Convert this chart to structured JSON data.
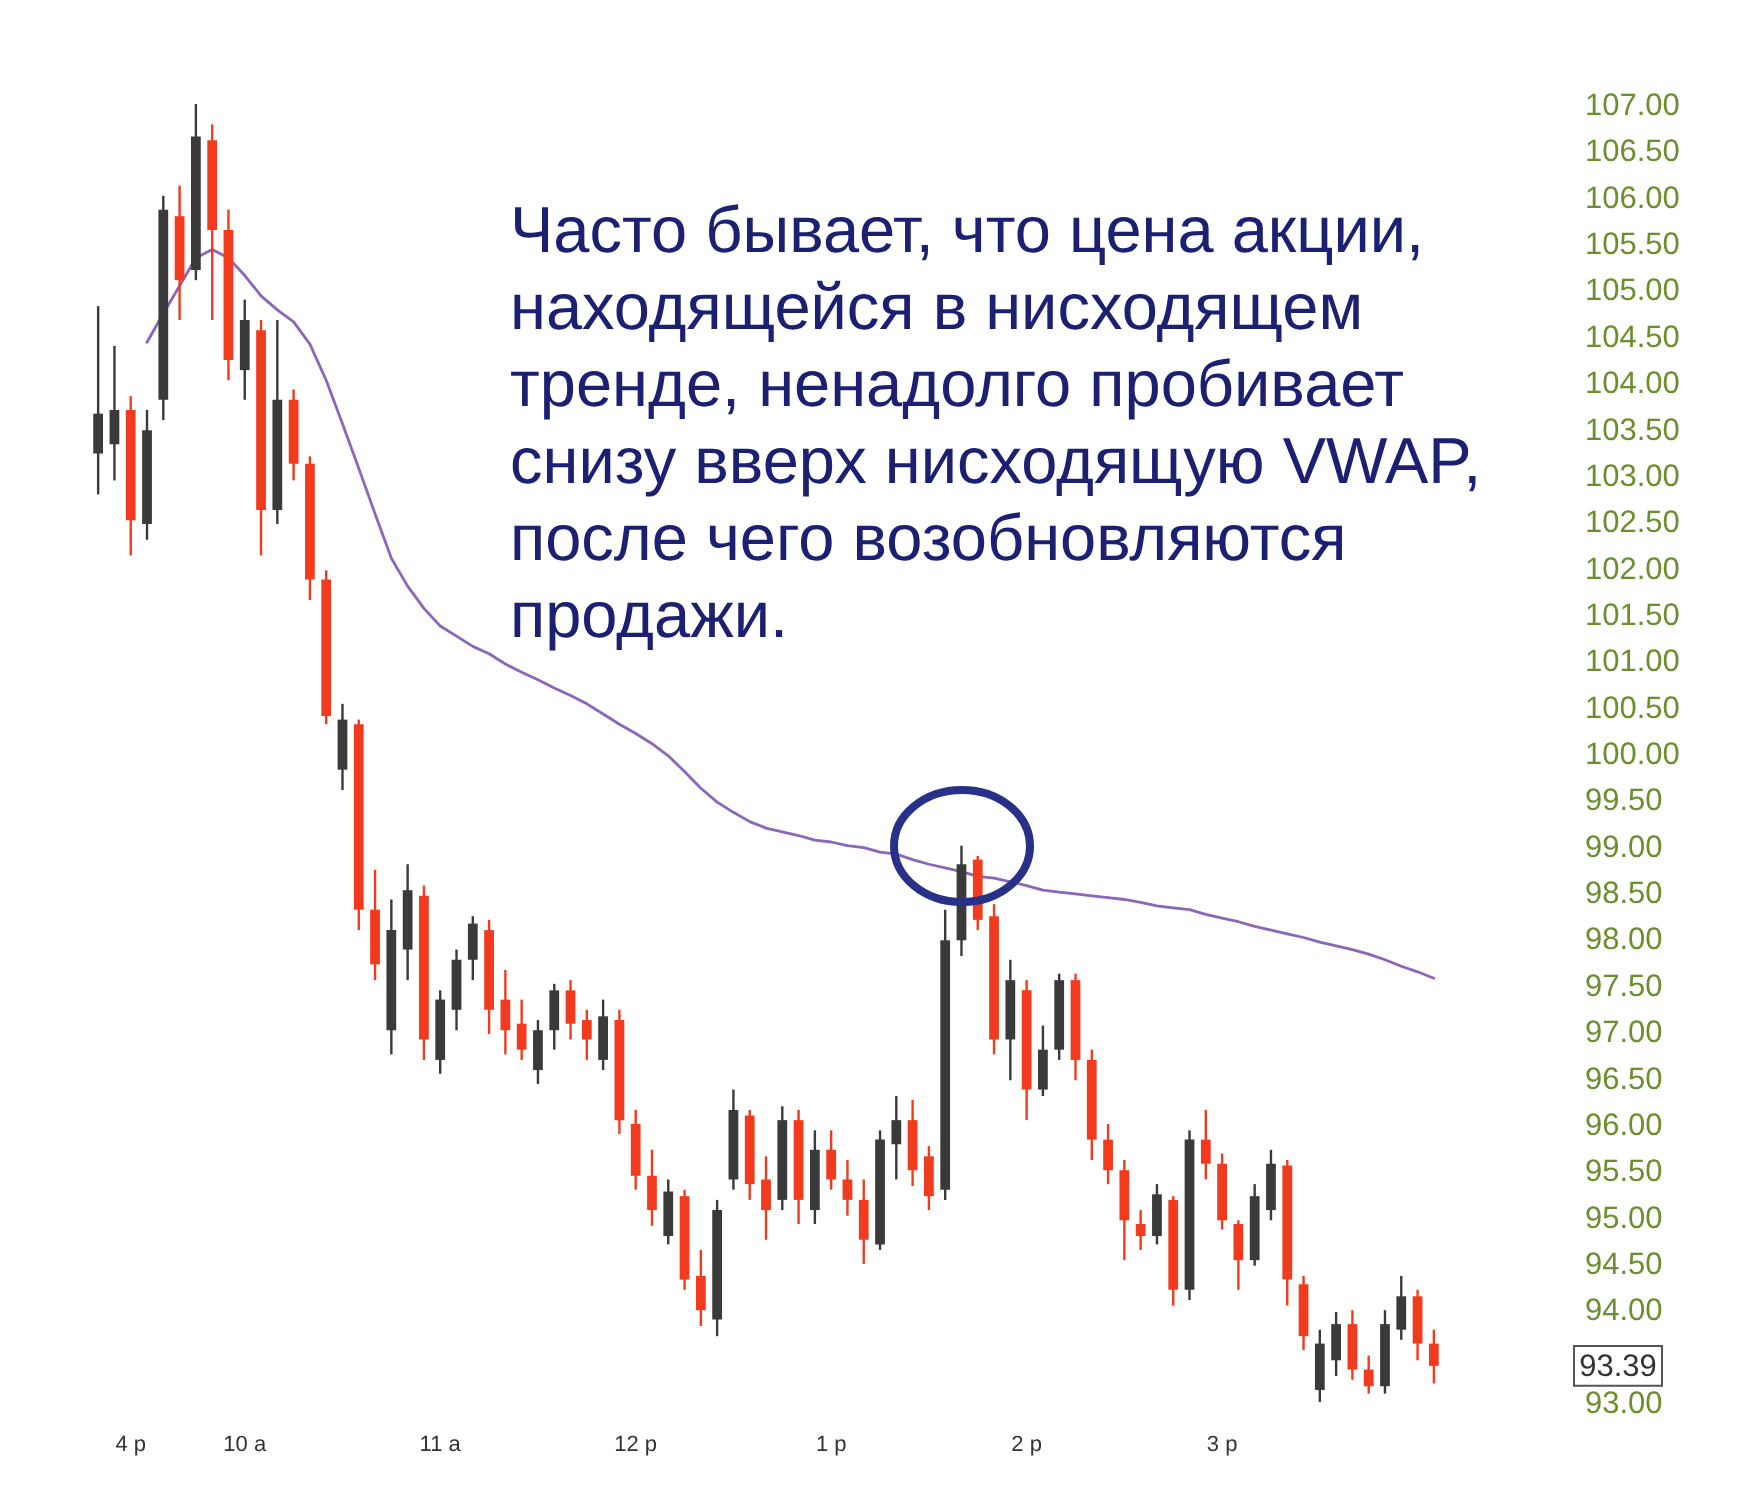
{
  "chart_data": {
    "type": "candlestick",
    "categories": [
      null,
      null,
      "4 p",
      null,
      null,
      null,
      null,
      null,
      null,
      "10 a",
      null,
      null,
      null,
      null,
      null,
      null,
      null,
      null,
      null,
      null,
      null,
      "11 a",
      null,
      null,
      null,
      null,
      null,
      null,
      null,
      null,
      null,
      null,
      null,
      "12 p",
      null,
      null,
      null,
      null,
      null,
      null,
      null,
      null,
      null,
      null,
      null,
      "1 p",
      null,
      null,
      null,
      null,
      null,
      null,
      null,
      null,
      null,
      null,
      null,
      "2 p",
      null,
      null,
      null,
      null,
      null,
      null,
      null,
      null,
      null,
      null,
      null,
      "3 p",
      null,
      null,
      null,
      null,
      null,
      null,
      null,
      null,
      null,
      null,
      null,
      null,
      null
    ],
    "ohlc": [
      [
        103.23,
        104.82,
        102.79,
        103.66
      ],
      [
        103.33,
        104.39,
        102.94,
        103.7
      ],
      [
        103.7,
        103.85,
        102.13,
        102.51
      ],
      [
        102.47,
        103.7,
        102.3,
        103.48
      ],
      [
        103.81,
        106.01,
        103.59,
        105.86
      ],
      [
        105.79,
        106.12,
        104.67,
        105.1
      ],
      [
        105.21,
        107.0,
        105.1,
        106.65
      ],
      [
        106.61,
        106.78,
        104.67,
        105.64
      ],
      [
        105.64,
        105.86,
        104.02,
        104.24
      ],
      [
        104.13,
        104.89,
        103.81,
        104.67
      ],
      [
        104.56,
        104.67,
        102.13,
        102.62
      ],
      [
        102.62,
        104.67,
        102.47,
        103.81
      ],
      [
        103.81,
        103.92,
        102.94,
        103.12
      ],
      [
        103.12,
        103.2,
        101.65,
        101.87
      ],
      [
        101.87,
        101.97,
        100.31,
        100.4
      ],
      [
        99.82,
        100.53,
        99.6,
        100.36
      ],
      [
        100.31,
        100.36,
        98.09,
        98.31
      ],
      [
        98.31,
        98.74,
        97.55,
        97.72
      ],
      [
        97.01,
        98.42,
        96.75,
        98.09
      ],
      [
        97.88,
        98.8,
        97.55,
        98.52
      ],
      [
        98.46,
        98.57,
        96.69,
        96.91
      ],
      [
        96.69,
        97.44,
        96.54,
        97.34
      ],
      [
        97.23,
        97.88,
        97.01,
        97.77
      ],
      [
        97.77,
        98.24,
        97.55,
        98.16
      ],
      [
        98.09,
        98.2,
        96.97,
        97.23
      ],
      [
        97.34,
        97.66,
        96.75,
        97.01
      ],
      [
        97.08,
        97.34,
        96.69,
        96.8
      ],
      [
        96.58,
        97.12,
        96.43,
        97.01
      ],
      [
        97.01,
        97.51,
        96.8,
        97.44
      ],
      [
        97.44,
        97.55,
        96.91,
        97.08
      ],
      [
        97.12,
        97.23,
        96.69,
        96.91
      ],
      [
        96.69,
        97.34,
        96.58,
        97.16
      ],
      [
        97.12,
        97.23,
        95.89,
        96.04
      ],
      [
        96.0,
        96.15,
        95.29,
        95.44
      ],
      [
        95.44,
        95.72,
        94.9,
        95.07
      ],
      [
        94.79,
        95.4,
        94.7,
        95.27
      ],
      [
        95.22,
        95.29,
        94.21,
        94.32
      ],
      [
        94.36,
        94.64,
        93.82,
        93.99
      ],
      [
        93.89,
        95.18,
        93.71,
        95.07
      ],
      [
        95.4,
        96.37,
        95.29,
        96.15
      ],
      [
        96.09,
        96.15,
        95.18,
        95.35
      ],
      [
        95.4,
        95.65,
        94.75,
        95.07
      ],
      [
        95.18,
        96.19,
        95.07,
        96.04
      ],
      [
        96.04,
        96.15,
        94.92,
        95.18
      ],
      [
        95.07,
        95.93,
        94.92,
        95.72
      ],
      [
        95.72,
        95.93,
        95.29,
        95.4
      ],
      [
        95.4,
        95.61,
        95.01,
        95.18
      ],
      [
        95.18,
        95.4,
        94.49,
        94.75
      ],
      [
        94.7,
        95.93,
        94.64,
        95.83
      ],
      [
        95.78,
        96.3,
        95.4,
        96.04
      ],
      [
        96.04,
        96.26,
        95.33,
        95.5
      ],
      [
        95.65,
        95.76,
        95.07,
        95.22
      ],
      [
        95.29,
        98.31,
        95.18,
        97.98
      ],
      [
        97.98,
        99.0,
        97.81,
        98.8
      ],
      [
        98.85,
        98.89,
        98.09,
        98.2
      ],
      [
        98.24,
        98.37,
        96.75,
        96.91
      ],
      [
        96.91,
        97.77,
        96.47,
        97.55
      ],
      [
        97.44,
        97.55,
        96.04,
        96.37
      ],
      [
        96.37,
        97.06,
        96.3,
        96.8
      ],
      [
        96.8,
        97.62,
        96.69,
        97.55
      ],
      [
        97.55,
        97.62,
        96.47,
        96.69
      ],
      [
        96.69,
        96.8,
        95.61,
        95.83
      ],
      [
        95.83,
        96.0,
        95.35,
        95.5
      ],
      [
        95.5,
        95.61,
        94.53,
        94.96
      ],
      [
        94.92,
        95.07,
        94.64,
        94.79
      ],
      [
        94.79,
        95.35,
        94.7,
        95.24
      ],
      [
        95.18,
        95.22,
        94.04,
        94.21
      ],
      [
        94.21,
        95.93,
        94.1,
        95.83
      ],
      [
        95.83,
        96.15,
        95.4,
        95.57
      ],
      [
        95.57,
        95.68,
        94.86,
        94.96
      ],
      [
        94.92,
        94.96,
        94.21,
        94.53
      ],
      [
        94.53,
        95.35,
        94.47,
        95.22
      ],
      [
        95.07,
        95.72,
        94.96,
        95.57
      ],
      [
        95.55,
        95.61,
        94.04,
        94.32
      ],
      [
        94.27,
        94.36,
        93.56,
        93.71
      ],
      [
        93.13,
        93.78,
        93.0,
        93.63
      ],
      [
        93.45,
        93.97,
        93.28,
        93.84
      ],
      [
        93.84,
        93.99,
        93.24,
        93.35
      ],
      [
        93.35,
        93.5,
        93.09,
        93.17
      ],
      [
        93.17,
        93.99,
        93.09,
        93.84
      ],
      [
        93.78,
        94.36,
        93.67,
        94.14
      ],
      [
        94.14,
        94.21,
        93.45,
        93.63
      ],
      [
        93.63,
        93.78,
        93.2,
        93.39
      ]
    ],
    "colors": [
      "#3a3a3a",
      "#3a3a3a",
      "#f23b1e",
      "#3a3a3a",
      "#3a3a3a",
      "#f23b1e",
      "#3a3a3a",
      "#f23b1e",
      "#f23b1e",
      "#3a3a3a",
      "#f23b1e",
      "#3a3a3a",
      "#f23b1e",
      "#f23b1e",
      "#f23b1e",
      "#3a3a3a",
      "#f23b1e",
      "#f23b1e",
      "#3a3a3a",
      "#3a3a3a",
      "#f23b1e",
      "#3a3a3a",
      "#3a3a3a",
      "#3a3a3a",
      "#f23b1e",
      "#f23b1e",
      "#f23b1e",
      "#3a3a3a",
      "#3a3a3a",
      "#f23b1e",
      "#f23b1e",
      "#3a3a3a",
      "#f23b1e",
      "#f23b1e",
      "#f23b1e",
      "#3a3a3a",
      "#f23b1e",
      "#f23b1e",
      "#3a3a3a",
      "#3a3a3a",
      "#f23b1e",
      "#f23b1e",
      "#3a3a3a",
      "#f23b1e",
      "#3a3a3a",
      "#f23b1e",
      "#f23b1e",
      "#f23b1e",
      "#3a3a3a",
      "#3a3a3a",
      "#f23b1e",
      "#f23b1e",
      "#3a3a3a",
      "#3a3a3a",
      "#f23b1e",
      "#f23b1e",
      "#3a3a3a",
      "#f23b1e",
      "#3a3a3a",
      "#3a3a3a",
      "#f23b1e",
      "#f23b1e",
      "#f23b1e",
      "#f23b1e",
      "#f23b1e",
      "#3a3a3a",
      "#f23b1e",
      "#3a3a3a",
      "#f23b1e",
      "#f23b1e",
      "#f23b1e",
      "#3a3a3a",
      "#3a3a3a",
      "#f23b1e",
      "#f23b1e",
      "#3a3a3a",
      "#3a3a3a",
      "#f23b1e",
      "#f23b1e",
      "#3a3a3a",
      "#3a3a3a",
      "#f23b1e",
      "#f23b1e"
    ],
    "series": [
      {
        "type": "line",
        "color": "#8c66b8",
        "values": [
          null,
          null,
          null,
          104.43,
          104.74,
          105.04,
          105.34,
          105.43,
          105.34,
          105.15,
          104.93,
          104.78,
          104.65,
          104.41,
          104.02,
          103.55,
          103.07,
          102.58,
          102.1,
          101.8,
          101.56,
          101.37,
          101.26,
          101.15,
          101.07,
          100.96,
          100.87,
          100.79,
          100.7,
          100.62,
          100.53,
          100.42,
          100.31,
          100.21,
          100.1,
          99.97,
          99.8,
          99.62,
          99.47,
          99.36,
          99.26,
          99.19,
          99.15,
          99.11,
          99.06,
          99.04,
          99.0,
          98.98,
          98.93,
          98.91,
          98.85,
          98.8,
          98.76,
          98.72,
          98.67,
          98.65,
          98.61,
          98.57,
          98.52,
          98.5,
          98.48,
          98.46,
          98.44,
          98.42,
          98.39,
          98.35,
          98.33,
          98.31,
          98.26,
          98.22,
          98.18,
          98.13,
          98.09,
          98.05,
          98.01,
          97.96,
          97.92,
          97.88,
          97.83,
          97.77,
          97.7,
          97.64,
          97.57
        ]
      }
    ],
    "ylim": [
      93,
      107
    ],
    "yticks": [
      {
        "value": 93,
        "label": "93.00"
      },
      {
        "value": 94,
        "label": "94.00"
      },
      {
        "value": 94.5,
        "label": "94.50"
      },
      {
        "value": 95,
        "label": "95.00"
      },
      {
        "value": 95.5,
        "label": "95.50"
      },
      {
        "value": 96,
        "label": "96.00"
      },
      {
        "value": 96.5,
        "label": "96.50"
      },
      {
        "value": 97,
        "label": "97.00"
      },
      {
        "value": 97.5,
        "label": "97.50"
      },
      {
        "value": 98,
        "label": "98.00"
      },
      {
        "value": 98.5,
        "label": "98.50"
      },
      {
        "value": 99,
        "label": "99.00"
      },
      {
        "value": 99.5,
        "label": "99.50"
      },
      {
        "value": 100,
        "label": "100.00"
      },
      {
        "value": 100.5,
        "label": "100.50"
      },
      {
        "value": 101,
        "label": "101.00"
      },
      {
        "value": 101.5,
        "label": "101.50"
      },
      {
        "value": 102,
        "label": "102.00"
      },
      {
        "value": 102.5,
        "label": "102.50"
      },
      {
        "value": 103,
        "label": "103.00"
      },
      {
        "value": 103.5,
        "label": "103.50"
      },
      {
        "value": 104,
        "label": "104.00"
      },
      {
        "value": 104.5,
        "label": "104.50"
      },
      {
        "value": 105,
        "label": "105.00"
      },
      {
        "value": 105.5,
        "label": "105.50"
      },
      {
        "value": 106,
        "label": "106.00"
      },
      {
        "value": 106.5,
        "label": "106.50"
      },
      {
        "value": 107,
        "label": "107.00"
      }
    ],
    "annotations": [
      "Часто бывает, что цена акции,\nнаходящейся в нисходящем\nтренде, ненадолго пробивает\nснизу вверх нисходящую VWAP,\nпосле чего возобновляются\nпродажи.",
      "93.39"
    ]
  }
}
